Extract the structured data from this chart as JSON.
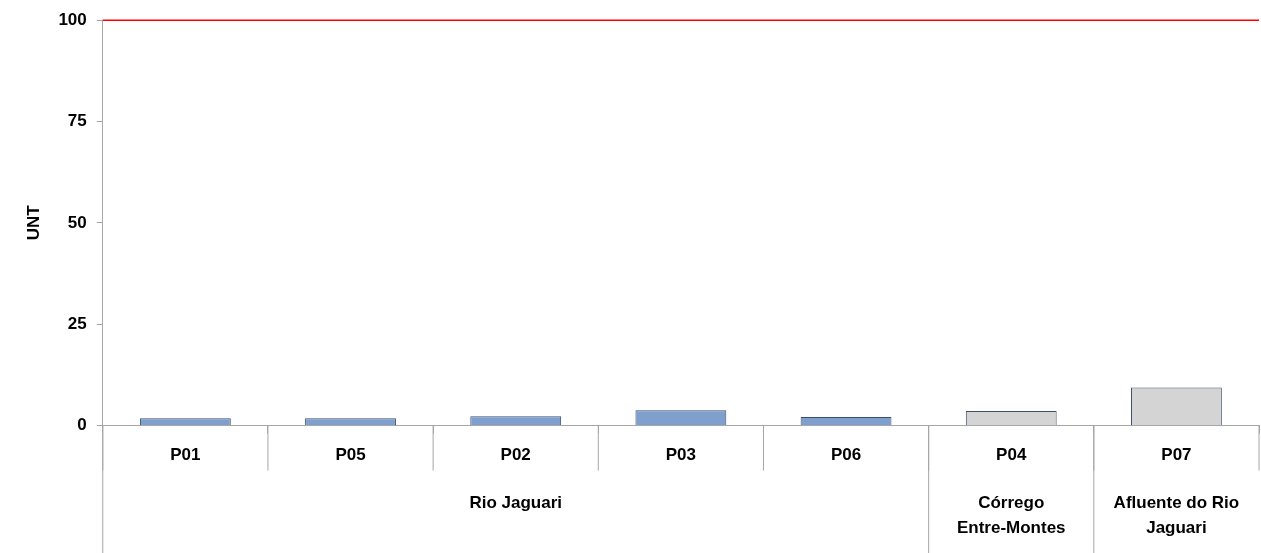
{
  "chart_data": {
    "type": "bar",
    "ylabel": "UNT",
    "categories": [
      "P01",
      "P05",
      "P02",
      "P03",
      "P06",
      "P04",
      "P07"
    ],
    "values": [
      1.8,
      1.8,
      2.3,
      3.8,
      2.1,
      3.6,
      9.4
    ],
    "colors": [
      "#7f9fcf",
      "#7f9fcf",
      "#7f9fcf",
      "#7f9fcf",
      "#7f9fcf",
      "#d4d4d4",
      "#d4d4d4"
    ],
    "ylim": [
      0,
      100
    ],
    "yticks": [
      0,
      25,
      50,
      75,
      100
    ],
    "grid": false,
    "legend": false,
    "ref_lines": [
      {
        "axis": "y",
        "value": 100,
        "color": "#ff0000"
      }
    ],
    "annotations": [
      "Rio Jaguari",
      "Córrego Entre-Montes",
      "Afluente do Rio Jaguari"
    ]
  }
}
